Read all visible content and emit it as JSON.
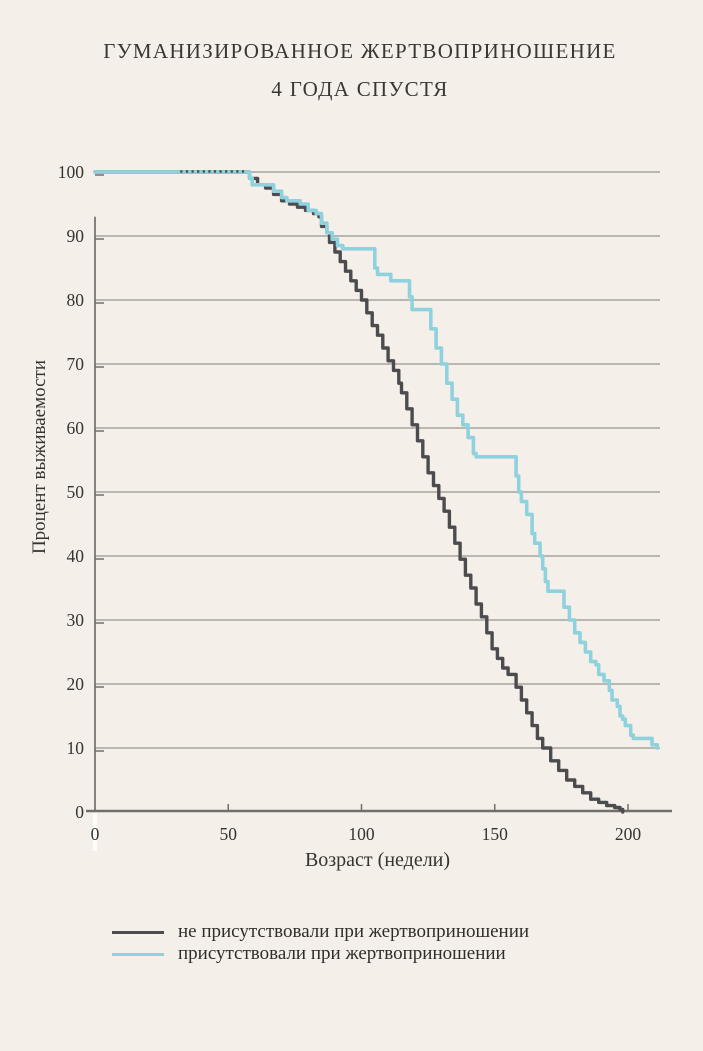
{
  "title": {
    "line1": "ГУМАНИЗИРОВАННОЕ ЖЕРТВОПРИНОШЕНИЕ",
    "line2": "4 ГОДА СПУСТЯ"
  },
  "colors": {
    "background": "#f4f0e9",
    "grid": "#a7a49d",
    "axis": "#716f6a",
    "text": "#35332f",
    "series_not_present": "#4c4c4e",
    "series_present": "#8fd2de",
    "zero_tick_white": "#fdfcf9"
  },
  "chart_data": {
    "type": "line",
    "subtype": "kaplan-meier-survival-steps",
    "title": "ГУМАНИЗИРОВАННОЕ ЖЕРТВОПРИНОШЕНИЕ 4 ГОДА СПУСТЯ",
    "xlabel": "Возраст (недели)",
    "ylabel": "Процент выживаемости",
    "xlim": [
      0,
      212
    ],
    "ylim": [
      0,
      100
    ],
    "x_ticks": [
      0,
      50,
      100,
      150,
      200
    ],
    "y_ticks": [
      0,
      10,
      20,
      30,
      40,
      50,
      60,
      70,
      80,
      90,
      100
    ],
    "grid": "horizontal gridlines at every 10%, no vertical gridlines",
    "legend_position": "below chart",
    "series": [
      {
        "name": "не присутствовали при жертвоприношении",
        "color": "#4c4c4e",
        "style": "solid; rendered as dotted dots over the other curve from ~32 to ~57 weeks while both are at 100%",
        "points": [
          [
            0,
            100
          ],
          [
            57,
            100
          ],
          [
            58,
            99
          ],
          [
            61,
            98
          ],
          [
            64,
            97.5
          ],
          [
            67,
            96.5
          ],
          [
            70,
            95.5
          ],
          [
            73,
            95
          ],
          [
            76,
            94.5
          ],
          [
            79,
            94
          ],
          [
            82,
            93.5
          ],
          [
            84,
            93
          ],
          [
            85,
            91.5
          ],
          [
            87,
            90.5
          ],
          [
            88,
            89
          ],
          [
            90,
            87.5
          ],
          [
            92,
            86
          ],
          [
            94,
            84.5
          ],
          [
            96,
            83
          ],
          [
            98,
            81.5
          ],
          [
            100,
            80
          ],
          [
            102,
            78
          ],
          [
            104,
            76
          ],
          [
            106,
            74.5
          ],
          [
            108,
            72.5
          ],
          [
            110,
            70.5
          ],
          [
            112,
            69
          ],
          [
            114,
            67
          ],
          [
            115,
            65.5
          ],
          [
            117,
            63
          ],
          [
            119,
            60.5
          ],
          [
            121,
            58
          ],
          [
            123,
            55.5
          ],
          [
            125,
            53
          ],
          [
            127,
            51
          ],
          [
            129,
            49
          ],
          [
            131,
            47
          ],
          [
            133,
            44.5
          ],
          [
            135,
            42
          ],
          [
            137,
            39.5
          ],
          [
            139,
            37
          ],
          [
            141,
            35
          ],
          [
            143,
            32.5
          ],
          [
            145,
            30.5
          ],
          [
            147,
            28
          ],
          [
            149,
            25.5
          ],
          [
            151,
            24
          ],
          [
            153,
            22.5
          ],
          [
            155,
            21.5
          ],
          [
            158,
            19.5
          ],
          [
            160,
            17.5
          ],
          [
            162,
            15.5
          ],
          [
            164,
            13.5
          ],
          [
            166,
            11.5
          ],
          [
            168,
            10
          ],
          [
            171,
            8
          ],
          [
            174,
            6.5
          ],
          [
            177,
            5
          ],
          [
            180,
            4
          ],
          [
            183,
            3
          ],
          [
            186,
            2
          ],
          [
            189,
            1.5
          ],
          [
            192,
            1
          ],
          [
            195,
            0.7
          ],
          [
            197,
            0.4
          ],
          [
            198,
            0
          ]
        ]
      },
      {
        "name": "присутствовали при жертвоприношении",
        "color": "#8fd2de",
        "style": "solid",
        "points": [
          [
            0,
            100
          ],
          [
            57,
            100
          ],
          [
            58,
            99
          ],
          [
            59,
            98
          ],
          [
            65,
            98
          ],
          [
            67,
            97
          ],
          [
            70,
            96
          ],
          [
            72,
            95.5
          ],
          [
            76,
            95.5
          ],
          [
            77,
            95
          ],
          [
            80,
            94
          ],
          [
            83,
            93.5
          ],
          [
            85,
            92
          ],
          [
            87,
            90.5
          ],
          [
            89,
            89.5
          ],
          [
            91,
            88.5
          ],
          [
            93,
            88
          ],
          [
            104,
            88
          ],
          [
            105,
            85
          ],
          [
            106,
            84
          ],
          [
            110,
            84
          ],
          [
            111,
            83
          ],
          [
            116,
            83
          ],
          [
            118,
            80.5
          ],
          [
            119,
            78.5
          ],
          [
            124,
            78.5
          ],
          [
            126,
            75.5
          ],
          [
            128,
            72.5
          ],
          [
            130,
            70
          ],
          [
            132,
            67
          ],
          [
            134,
            64.5
          ],
          [
            136,
            62
          ],
          [
            138,
            60.5
          ],
          [
            140,
            58.5
          ],
          [
            142,
            56
          ],
          [
            143,
            55.5
          ],
          [
            156,
            55.5
          ],
          [
            158,
            52.5
          ],
          [
            159,
            50
          ],
          [
            160,
            48.5
          ],
          [
            162,
            46.5
          ],
          [
            164,
            43.5
          ],
          [
            165,
            42
          ],
          [
            167,
            40
          ],
          [
            168,
            38
          ],
          [
            169,
            36
          ],
          [
            170,
            34.5
          ],
          [
            174,
            34.5
          ],
          [
            176,
            32
          ],
          [
            178,
            30
          ],
          [
            180,
            28
          ],
          [
            182,
            26.5
          ],
          [
            184,
            25
          ],
          [
            186,
            23.5
          ],
          [
            188,
            23
          ],
          [
            189,
            21.5
          ],
          [
            191,
            20.5
          ],
          [
            193,
            19
          ],
          [
            194,
            17.5
          ],
          [
            196,
            16.5
          ],
          [
            197,
            15
          ],
          [
            198,
            14.5
          ],
          [
            199,
            13.5
          ],
          [
            201,
            12
          ],
          [
            202,
            11.5
          ],
          [
            208,
            11.5
          ],
          [
            209,
            10.5
          ],
          [
            211,
            10
          ]
        ]
      }
    ],
    "dotted_overlay": {
      "series": "не присутствовали при жертвоприношении",
      "from_week": 32,
      "to_week": 57,
      "pct": 100
    }
  },
  "legend": {
    "items": [
      {
        "label": "не присутствовали при жертвоприношении",
        "color": "#4c4c4e"
      },
      {
        "label": "присутствовали при жертвоприношении",
        "color": "#8fd2de"
      }
    ]
  }
}
